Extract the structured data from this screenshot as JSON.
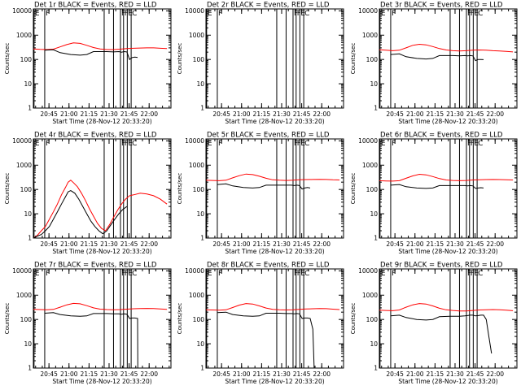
{
  "figure": {
    "background": "#ffffff"
  },
  "chart_data": {
    "type": "line",
    "layout": "3x3 grid",
    "x_ticks": [
      "20:45",
      "21:00",
      "21:15",
      "21:30",
      "21:45",
      "22:00"
    ],
    "x_tick_minutes_after_start": [
      11.67,
      26.67,
      41.67,
      56.67,
      71.67,
      86.67
    ],
    "x_range_minutes": [
      0,
      103
    ],
    "xlabel": "Start Time (28-Nov-12 20:33:20)",
    "ylabel": "Counts/sec",
    "y_scale": "log",
    "y_ticks": [
      1,
      10,
      100,
      1000,
      10000
    ],
    "y_tick_labels": [
      "1",
      "10",
      "100",
      "1000",
      "10000"
    ],
    "ylim": [
      1,
      12000
    ],
    "series_colors": {
      "events": "#000000",
      "lld": "#ff0000"
    },
    "flag_labels": {
      "E": "E",
      "F": "F",
      "FE": "FE",
      "C": "C"
    },
    "flags": [
      {
        "minute": 0.5,
        "labels": [
          "E"
        ]
      },
      {
        "minute": 8.5,
        "labels": [
          "F"
        ]
      },
      {
        "minute": 53,
        "labels": []
      },
      {
        "minute": 60,
        "labels": []
      },
      {
        "minute": 65.2,
        "labels": [
          "F"
        ]
      },
      {
        "minute": 67.5,
        "labels": [
          "F"
        ]
      },
      {
        "minute": 70.3,
        "labels": [
          "E"
        ]
      },
      {
        "minute": 73.2,
        "labels": [
          "C"
        ]
      }
    ],
    "panels": [
      {
        "title": "Det 1r BLACK = Events, RED = LLD",
        "events": {
          "x": [
            8.5,
            15,
            20,
            28,
            35,
            40,
            45,
            53,
            55,
            60,
            64,
            66,
            68,
            70,
            72,
            74,
            76,
            78
          ],
          "y": [
            240,
            250,
            190,
            160,
            150,
            160,
            210,
            210,
            210,
            205,
            210,
            200,
            210,
            205,
            100,
            120,
            125,
            120
          ]
        },
        "lld": {
          "x": [
            0,
            5,
            10,
            15,
            20,
            25,
            30,
            35,
            40,
            45,
            50,
            55,
            60,
            65,
            70,
            75,
            80,
            85,
            90,
            95,
            100
          ],
          "y": [
            270,
            260,
            255,
            265,
            330,
            410,
            480,
            460,
            380,
            310,
            270,
            255,
            255,
            265,
            280,
            290,
            295,
            300,
            300,
            290,
            280
          ]
        }
      },
      {
        "title": "Det 2r BLACK = Events, RED = LLD",
        "events": {
          "x": [],
          "y": []
        },
        "lld": {
          "x": [],
          "y": []
        }
      },
      {
        "title": "Det 3r BLACK = Events, RED = LLD",
        "events": {
          "x": [
            8.5,
            15,
            20,
            28,
            35,
            40,
            45,
            53,
            55,
            60,
            64,
            66,
            68,
            70,
            72,
            74,
            76,
            78
          ],
          "y": [
            160,
            170,
            130,
            110,
            105,
            110,
            145,
            145,
            145,
            140,
            145,
            140,
            145,
            140,
            90,
            100,
            100,
            98
          ]
        },
        "lld": {
          "x": [
            0,
            5,
            10,
            15,
            20,
            25,
            30,
            35,
            40,
            45,
            50,
            55,
            60,
            65,
            70,
            75,
            80,
            85,
            90,
            95,
            100
          ],
          "y": [
            250,
            240,
            230,
            240,
            300,
            380,
            420,
            400,
            340,
            280,
            245,
            230,
            225,
            230,
            240,
            245,
            240,
            230,
            225,
            215,
            205
          ]
        }
      },
      {
        "title": "Det 4r BLACK = Events, RED = LLD",
        "events": {
          "x": [
            0,
            3,
            6,
            9,
            12,
            15,
            18,
            21,
            24,
            26,
            28,
            31,
            34,
            37,
            40,
            43,
            46,
            49,
            52,
            55,
            58,
            61,
            64,
            67,
            70
          ],
          "y": [
            1,
            1.2,
            1.4,
            2,
            3,
            6,
            12,
            25,
            50,
            80,
            90,
            70,
            40,
            20,
            10,
            5,
            3,
            2,
            1.5,
            2,
            3.5,
            6,
            10,
            15,
            20
          ]
        },
        "lld": {
          "x": [
            0,
            3,
            6,
            9,
            12,
            15,
            18,
            21,
            24,
            26,
            28,
            30,
            33,
            36,
            39,
            42,
            45,
            48,
            51,
            54,
            57,
            60,
            63,
            66,
            69,
            72,
            75,
            80,
            85,
            90,
            95,
            100
          ],
          "y": [
            1,
            1.3,
            2,
            3,
            6,
            12,
            25,
            60,
            120,
            200,
            240,
            190,
            130,
            70,
            35,
            16,
            8,
            4,
            2.5,
            2,
            3.5,
            7,
            14,
            25,
            40,
            55,
            60,
            70,
            65,
            55,
            40,
            25
          ]
        }
      },
      {
        "title": "Det 5r BLACK = Events, RED = LLD",
        "events": {
          "x": [
            8.5,
            15,
            20,
            28,
            35,
            40,
            45,
            53,
            55,
            60,
            64,
            66,
            68,
            70,
            72,
            74,
            76,
            78
          ],
          "y": [
            160,
            170,
            140,
            120,
            115,
            120,
            150,
            150,
            150,
            150,
            150,
            145,
            150,
            145,
            105,
            115,
            120,
            115
          ]
        },
        "lld": {
          "x": [
            0,
            5,
            10,
            15,
            20,
            25,
            30,
            35,
            40,
            45,
            50,
            55,
            60,
            65,
            70,
            75,
            80,
            85,
            90,
            95,
            100
          ],
          "y": [
            240,
            235,
            230,
            240,
            300,
            370,
            430,
            410,
            350,
            290,
            250,
            240,
            235,
            240,
            250,
            255,
            258,
            260,
            258,
            250,
            245
          ]
        }
      },
      {
        "title": "Det 6r BLACK = Events, RED = LLD",
        "events": {
          "x": [
            8.5,
            15,
            20,
            28,
            35,
            40,
            45,
            53,
            55,
            60,
            64,
            66,
            68,
            70,
            72,
            74,
            76,
            78
          ],
          "y": [
            150,
            160,
            130,
            115,
            110,
            115,
            145,
            145,
            145,
            145,
            145,
            140,
            145,
            140,
            110,
            115,
            118,
            115
          ]
        },
        "lld": {
          "x": [
            0,
            5,
            10,
            15,
            20,
            25,
            30,
            35,
            40,
            45,
            50,
            55,
            60,
            65,
            70,
            75,
            80,
            85,
            90,
            95,
            100
          ],
          "y": [
            230,
            225,
            220,
            230,
            290,
            360,
            420,
            400,
            340,
            280,
            245,
            235,
            230,
            235,
            245,
            250,
            255,
            258,
            255,
            250,
            245
          ]
        }
      },
      {
        "title": "Det 7r BLACK = Events, RED = LLD",
        "events": {
          "x": [
            8.5,
            15,
            20,
            28,
            35,
            40,
            45,
            53,
            55,
            60,
            64,
            66,
            68,
            70,
            72,
            74,
            76,
            78,
            78.2
          ],
          "y": [
            180,
            190,
            160,
            140,
            135,
            140,
            175,
            175,
            175,
            170,
            170,
            165,
            170,
            165,
            110,
            115,
            115,
            110,
            1
          ]
        },
        "lld": {
          "x": [
            0,
            5,
            10,
            15,
            20,
            25,
            30,
            35,
            40,
            45,
            50,
            55,
            60,
            65,
            70,
            75,
            80,
            85,
            90,
            95,
            100
          ],
          "y": [
            260,
            255,
            250,
            260,
            320,
            400,
            460,
            440,
            370,
            300,
            265,
            255,
            250,
            255,
            265,
            275,
            280,
            285,
            280,
            270,
            260
          ]
        }
      },
      {
        "title": "Det 8r BLACK = Events, RED = LLD",
        "events": {
          "x": [
            8.5,
            15,
            20,
            28,
            35,
            40,
            45,
            53,
            55,
            60,
            64,
            66,
            68,
            70,
            72,
            74,
            76,
            78,
            80,
            81
          ],
          "y": [
            190,
            200,
            160,
            140,
            135,
            140,
            180,
            180,
            180,
            175,
            175,
            170,
            175,
            170,
            110,
            115,
            115,
            110,
            40,
            1
          ]
        },
        "lld": {
          "x": [
            0,
            5,
            10,
            15,
            20,
            25,
            30,
            35,
            40,
            45,
            50,
            55,
            60,
            65,
            70,
            75,
            80,
            85,
            90,
            95,
            100
          ],
          "y": [
            250,
            245,
            240,
            250,
            310,
            390,
            450,
            430,
            360,
            295,
            260,
            250,
            245,
            250,
            260,
            270,
            275,
            280,
            278,
            265,
            255
          ]
        }
      },
      {
        "title": "Det 9r BLACK = Events, RED = LLD",
        "events": {
          "x": [
            8.5,
            15,
            20,
            28,
            35,
            40,
            45,
            53,
            55,
            60,
            64,
            66,
            68,
            70,
            72,
            74,
            76,
            78,
            80,
            82,
            84
          ],
          "y": [
            140,
            150,
            120,
            100,
            95,
            100,
            130,
            135,
            135,
            135,
            140,
            145,
            150,
            150,
            140,
            145,
            150,
            150,
            100,
            20,
            4
          ]
        },
        "lld": {
          "x": [
            0,
            5,
            10,
            15,
            20,
            25,
            30,
            35,
            40,
            45,
            50,
            55,
            60,
            65,
            70,
            75,
            80,
            85,
            90,
            95,
            100
          ],
          "y": [
            240,
            235,
            230,
            245,
            320,
            400,
            450,
            430,
            360,
            290,
            250,
            235,
            225,
            225,
            235,
            245,
            250,
            255,
            250,
            240,
            230
          ]
        }
      }
    ]
  }
}
